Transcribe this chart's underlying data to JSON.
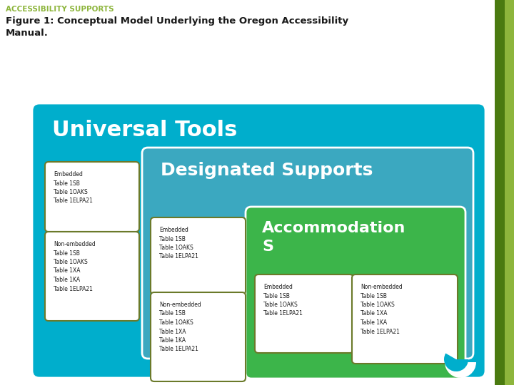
{
  "title_top": "ACCESSIBILITY SUPPORTS",
  "title_main": "Figure 1: Conceptual Model Underlying the Oregon Accessibility\nManual.",
  "title_top_color": "#8db53c",
  "title_main_color": "#1a1a1a",
  "bg_color": "#ffffff",
  "outer_box_color": "#00aecc",
  "universal_tools_label": "Universal Tools",
  "designated_supports_label": "Designated Supports",
  "accommodation_label": "Accommodation",
  "accommodation_s": "S",
  "box1_text": "Embedded\nTable 1SB\nTable 1OAKS\nTable 1ELPA21",
  "box2_text": "Non-embedded\nTable 1SB\nTable 1OAKS\nTable 1XA\nTable 1KA\nTable 1ELPA21",
  "box3_text": "Embedded\nTable 1SB\nTable 1OAKS\nTable 1ELPA21",
  "box4_text": "Non-embedded\nTable 1SB\nTable 1OAKS\nTable 1XA\nTable 1KA\nTable 1ELPA21",
  "box5_text": "Embedded\nTable 1SB\nTable 1OAKS\nTable 1ELPA21",
  "box6_text": "Non-embedded\nTable 1SB\nTable 1OAKS\nTable 1XA\nTable 1KA\nTable 1ELPA21",
  "white_box_edge_color": "#6b7a2a",
  "designated_bg": "#3ba8c0",
  "accommodation_bg": "#3cb54a",
  "right_sidebar_color": "#7a9a2a",
  "right_sidebar2_color": "#4a6a10"
}
